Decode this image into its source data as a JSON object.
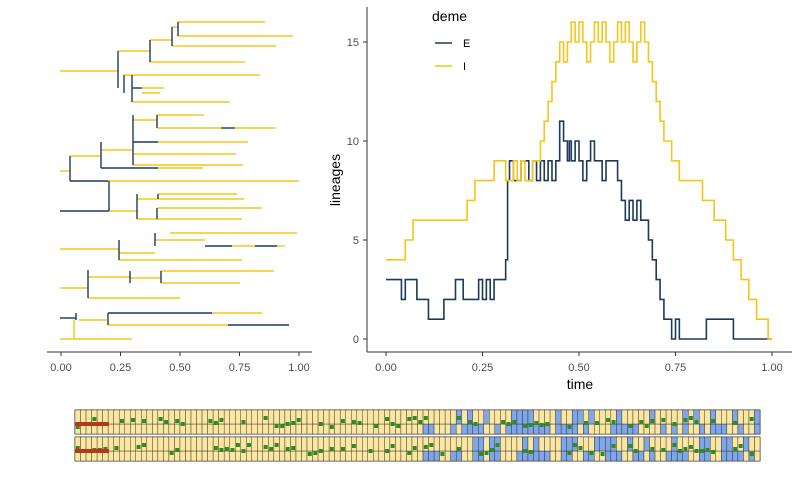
{
  "colors": {
    "E": "#1b3a5c",
    "I": "#f5c518",
    "axis": "#333333",
    "tick_text": "#4d4d4d",
    "grid_fill_I": "#fbe7a1",
    "grid_fill_E": "#8fb3e0",
    "grid_green": "#2e8b20",
    "grid_red": "#b5371c",
    "grid_blue": "#7fa7e8",
    "grid_border": "#222222"
  },
  "legend": {
    "title": "deme",
    "items": [
      {
        "label": "E",
        "color": "#1b3a5c"
      },
      {
        "label": "I",
        "color": "#f5c518"
      }
    ]
  },
  "chart_data": [
    {
      "type": "tree",
      "x_ticks": [
        "0.00",
        "0.25",
        "0.50",
        "0.75",
        "1.00"
      ],
      "x_tick_values": [
        0,
        0.25,
        0.5,
        0.75,
        1.0
      ],
      "xlim": [
        -0.05,
        1.05
      ],
      "grid": false,
      "tips": 30
    },
    {
      "type": "line",
      "xlabel": "time",
      "ylabel": "lineages",
      "xlim": [
        0,
        1
      ],
      "ylim": [
        0,
        17
      ],
      "x_ticks": [
        "0.00",
        "0.25",
        "0.50",
        "0.75",
        "1.00"
      ],
      "x_tick_values": [
        0,
        0.25,
        0.5,
        0.75,
        1.0
      ],
      "y_ticks": [
        "0",
        "5",
        "10",
        "15"
      ],
      "y_tick_values": [
        0,
        5,
        10,
        15
      ],
      "grid": false,
      "legend_position": "top-left inside",
      "series": [
        {
          "name": "E",
          "color": "#1b3a5c",
          "step_points": [
            [
              0.0,
              3
            ],
            [
              0.04,
              2
            ],
            [
              0.05,
              3
            ],
            [
              0.08,
              2
            ],
            [
              0.11,
              1
            ],
            [
              0.15,
              2
            ],
            [
              0.18,
              3
            ],
            [
              0.2,
              2
            ],
            [
              0.22,
              2
            ],
            [
              0.24,
              3
            ],
            [
              0.25,
              2
            ],
            [
              0.26,
              3
            ],
            [
              0.27,
              2
            ],
            [
              0.28,
              3
            ],
            [
              0.3,
              3
            ],
            [
              0.31,
              4
            ],
            [
              0.315,
              8
            ],
            [
              0.32,
              9
            ],
            [
              0.33,
              8
            ],
            [
              0.35,
              9
            ],
            [
              0.37,
              8
            ],
            [
              0.38,
              9
            ],
            [
              0.39,
              8
            ],
            [
              0.4,
              9
            ],
            [
              0.41,
              8
            ],
            [
              0.42,
              9
            ],
            [
              0.43,
              8
            ],
            [
              0.44,
              9
            ],
            [
              0.45,
              11
            ],
            [
              0.46,
              10
            ],
            [
              0.47,
              9
            ],
            [
              0.475,
              10
            ],
            [
              0.48,
              9
            ],
            [
              0.49,
              10
            ],
            [
              0.5,
              9
            ],
            [
              0.51,
              8
            ],
            [
              0.52,
              9
            ],
            [
              0.53,
              10
            ],
            [
              0.54,
              9
            ],
            [
              0.55,
              9
            ],
            [
              0.56,
              8
            ],
            [
              0.57,
              9
            ],
            [
              0.58,
              9
            ],
            [
              0.6,
              8
            ],
            [
              0.61,
              7
            ],
            [
              0.62,
              6
            ],
            [
              0.63,
              7
            ],
            [
              0.64,
              6
            ],
            [
              0.65,
              7
            ],
            [
              0.66,
              6
            ],
            [
              0.67,
              6
            ],
            [
              0.68,
              5
            ],
            [
              0.69,
              4
            ],
            [
              0.7,
              3
            ],
            [
              0.71,
              2
            ],
            [
              0.72,
              1
            ],
            [
              0.74,
              0
            ],
            [
              0.75,
              1
            ],
            [
              0.76,
              0
            ],
            [
              0.77,
              0
            ],
            [
              0.83,
              1
            ],
            [
              0.9,
              0
            ],
            [
              0.94,
              0
            ],
            [
              0.96,
              0
            ],
            [
              1.0,
              0
            ]
          ]
        },
        {
          "name": "I",
          "color": "#f5c518",
          "step_points": [
            [
              0.0,
              4
            ],
            [
              0.03,
              4
            ],
            [
              0.05,
              5
            ],
            [
              0.07,
              6
            ],
            [
              0.1,
              6
            ],
            [
              0.14,
              6
            ],
            [
              0.17,
              6
            ],
            [
              0.2,
              6
            ],
            [
              0.21,
              7
            ],
            [
              0.23,
              8
            ],
            [
              0.25,
              8
            ],
            [
              0.28,
              9
            ],
            [
              0.3,
              9
            ],
            [
              0.31,
              8
            ],
            [
              0.32,
              8
            ],
            [
              0.33,
              9
            ],
            [
              0.34,
              8
            ],
            [
              0.35,
              9
            ],
            [
              0.36,
              8
            ],
            [
              0.37,
              8
            ],
            [
              0.38,
              9
            ],
            [
              0.39,
              9
            ],
            [
              0.4,
              10
            ],
            [
              0.41,
              11
            ],
            [
              0.42,
              12
            ],
            [
              0.43,
              13
            ],
            [
              0.44,
              14
            ],
            [
              0.45,
              15
            ],
            [
              0.46,
              14
            ],
            [
              0.47,
              15
            ],
            [
              0.48,
              16
            ],
            [
              0.49,
              15
            ],
            [
              0.5,
              16
            ],
            [
              0.51,
              15
            ],
            [
              0.52,
              14
            ],
            [
              0.53,
              15
            ],
            [
              0.54,
              16
            ],
            [
              0.55,
              15
            ],
            [
              0.56,
              16
            ],
            [
              0.57,
              15
            ],
            [
              0.58,
              14
            ],
            [
              0.59,
              15
            ],
            [
              0.6,
              16
            ],
            [
              0.61,
              15
            ],
            [
              0.62,
              16
            ],
            [
              0.63,
              15
            ],
            [
              0.64,
              14
            ],
            [
              0.65,
              15
            ],
            [
              0.66,
              16
            ],
            [
              0.67,
              15
            ],
            [
              0.68,
              14
            ],
            [
              0.69,
              13
            ],
            [
              0.7,
              12
            ],
            [
              0.71,
              11
            ],
            [
              0.72,
              10
            ],
            [
              0.73,
              10
            ],
            [
              0.74,
              9
            ],
            [
              0.75,
              9
            ],
            [
              0.76,
              8
            ],
            [
              0.77,
              8
            ],
            [
              0.8,
              8
            ],
            [
              0.82,
              7
            ],
            [
              0.85,
              6
            ],
            [
              0.88,
              5
            ],
            [
              0.9,
              4
            ],
            [
              0.92,
              3
            ],
            [
              0.94,
              2
            ],
            [
              0.96,
              1
            ],
            [
              0.97,
              1
            ],
            [
              0.99,
              0
            ],
            [
              1.0,
              0
            ]
          ]
        }
      ]
    },
    {
      "type": "heatmap",
      "rows": 2,
      "columns": 124,
      "grid": true
    }
  ]
}
